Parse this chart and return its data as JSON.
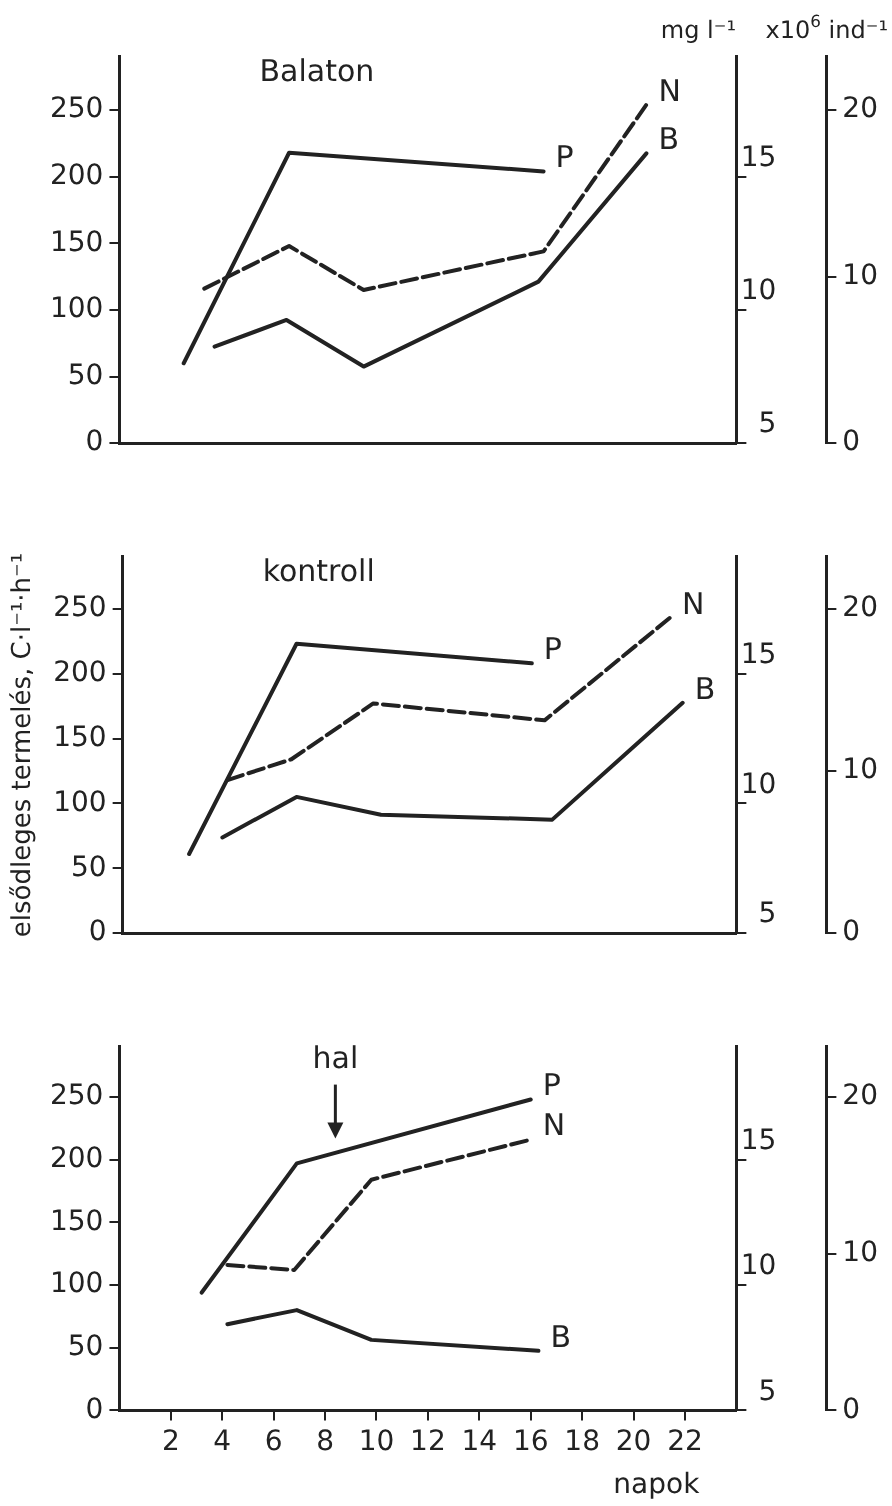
{
  "chart_data": [
    {
      "type": "line",
      "title": "Balaton",
      "y2label": "mg l⁻¹",
      "y3label": "x10$^{6}$ ind⁻¹",
      "xlim": [
        0,
        24
      ],
      "xticks": [
        2,
        4,
        6,
        8,
        10,
        12,
        14,
        16,
        18,
        20,
        22
      ],
      "ylim": [
        0,
        290
      ],
      "yticks": [
        0,
        50,
        100,
        150,
        200,
        250
      ],
      "y2lim": [
        5,
        19.5
      ],
      "y2ticks": [
        5,
        10,
        15
      ],
      "y3lim": [
        0,
        23.2
      ],
      "y3ticks": [
        0,
        10,
        20
      ],
      "tick_labels": "y",
      "grid": false,
      "legend": false,
      "marker": "none",
      "series": [
        {
          "name": "P",
          "color": "#222222",
          "line_style": "solid",
          "x": [
            2.5,
            6.6,
            16.5
          ],
          "values": [
            60,
            218,
            204
          ]
        },
        {
          "name": "N",
          "color": "#222222",
          "line_style": "dashed",
          "axis": "y2",
          "x": [
            3.3,
            6.6,
            9.5,
            16.5,
            20.5
          ],
          "values": [
            10.8,
            12.4,
            10.75,
            12.2,
            17.7
          ]
        },
        {
          "name": "B",
          "color": "#222222",
          "line_style": "solid",
          "axis": "y3",
          "x": [
            3.7,
            6.5,
            9.5,
            16.3,
            20.5
          ],
          "values": [
            5.8,
            7.4,
            4.6,
            9.7,
            17.4
          ]
        }
      ]
    },
    {
      "type": "line",
      "title": "kontroll",
      "ylabel": "elsődleges termelés, C·l⁻¹·h⁻¹",
      "xlim": [
        0,
        24
      ],
      "xticks": [
        2,
        4,
        6,
        8,
        10,
        12,
        14,
        16,
        18,
        20,
        22
      ],
      "ylim": [
        0,
        290
      ],
      "yticks": [
        0,
        50,
        100,
        150,
        200,
        250
      ],
      "y2lim": [
        5,
        19.5
      ],
      "y2ticks": [
        5,
        10,
        15
      ],
      "y3lim": [
        0,
        23.2
      ],
      "y3ticks": [
        0,
        10,
        20
      ],
      "tick_labels": "y",
      "grid": false,
      "legend": false,
      "marker": "none",
      "series": [
        {
          "name": "P",
          "color": "#222222",
          "line_style": "solid",
          "x": [
            2.6,
            6.8,
            16
          ],
          "values": [
            61,
            223,
            208
          ]
        },
        {
          "name": "N",
          "color": "#222222",
          "line_style": "dashed",
          "axis": "y2",
          "x": [
            4.1,
            6.6,
            9.8,
            16.5,
            21.4
          ],
          "values": [
            10.9,
            11.7,
            13.85,
            13.2,
            17.15
          ]
        },
        {
          "name": "B",
          "color": "#222222",
          "line_style": "solid",
          "axis": "y3",
          "x": [
            3.9,
            6.8,
            10.1,
            16.8,
            21.9
          ],
          "values": [
            5.9,
            8.4,
            7.3,
            7.0,
            14.2
          ]
        }
      ]
    },
    {
      "type": "line",
      "xlabel": "napok",
      "annotations": [
        {
          "text": "hal",
          "x": 8.4,
          "y": 212
        }
      ],
      "xlim": [
        0,
        24
      ],
      "xticks": [
        2,
        4,
        6,
        8,
        10,
        12,
        14,
        16,
        18,
        20,
        22
      ],
      "ylim": [
        0,
        290
      ],
      "yticks": [
        0,
        50,
        100,
        150,
        200,
        250
      ],
      "y2lim": [
        5,
        19.5
      ],
      "y2ticks": [
        5,
        10,
        15
      ],
      "y3lim": [
        0,
        23.2
      ],
      "y3ticks": [
        0,
        10,
        20
      ],
      "grid": false,
      "legend": false,
      "marker": "none",
      "series": [
        {
          "name": "P",
          "color": "#222222",
          "line_style": "solid",
          "x": [
            3.2,
            6.9,
            16
          ],
          "values": [
            94,
            197,
            248
          ]
        },
        {
          "name": "N",
          "color": "#222222",
          "line_style": "dashed",
          "axis": "y2",
          "x": [
            4.2,
            6.8,
            9.8,
            16
          ],
          "values": [
            10.8,
            10.6,
            14.2,
            15.8
          ]
        },
        {
          "name": "B",
          "color": "#222222",
          "line_style": "solid",
          "axis": "y3",
          "x": [
            4.2,
            6.9,
            9.8,
            16.3
          ],
          "values": [
            5.5,
            6.4,
            4.5,
            3.8
          ]
        }
      ]
    }
  ]
}
